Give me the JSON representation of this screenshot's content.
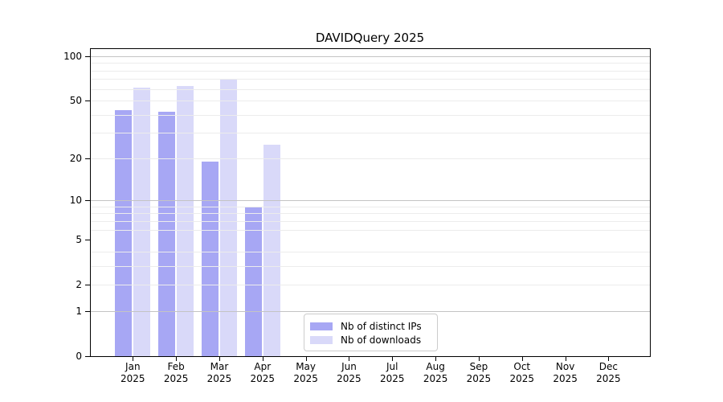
{
  "title": "DAVIDQuery 2025",
  "chart_data": {
    "type": "bar",
    "title": "DAVIDQuery 2025",
    "x_months": [
      "Jan",
      "Feb",
      "Mar",
      "Apr",
      "May",
      "Jun",
      "Jul",
      "Aug",
      "Sep",
      "Oct",
      "Nov",
      "Dec"
    ],
    "x_year": "2025",
    "series": [
      {
        "name": "Nb of distinct IPs",
        "color": "#a7a7f4",
        "values": [
          43,
          42,
          19,
          9,
          0,
          0,
          0,
          0,
          0,
          0,
          0,
          0
        ]
      },
      {
        "name": "Nb of downloads",
        "color": "#d9d9f9",
        "values": [
          61,
          63,
          70,
          25,
          0,
          0,
          0,
          0,
          0,
          0,
          0,
          0
        ]
      }
    ],
    "yscale": "log1p",
    "ylim": [
      0,
      113
    ],
    "yticks": [
      0,
      1,
      2,
      5,
      10,
      20,
      50,
      100
    ],
    "ytick_labels": [
      "0",
      "1",
      "2",
      "5",
      "10",
      "20",
      "50",
      "100"
    ],
    "major_grid_values": [
      1,
      10,
      100
    ],
    "minor_grid_values": [
      2,
      3,
      4,
      6,
      7,
      8,
      9,
      20,
      30,
      40,
      50,
      60,
      70,
      80,
      90
    ],
    "grid": true,
    "legend_position": "lower center"
  },
  "colors": {
    "bar_distinct_ips": "#a7a7f4",
    "bar_downloads": "#d9d9f9",
    "grid_minor": "#ececec",
    "grid_major": "#c4c4c4",
    "spine": "#000000",
    "background": "#ffffff"
  }
}
